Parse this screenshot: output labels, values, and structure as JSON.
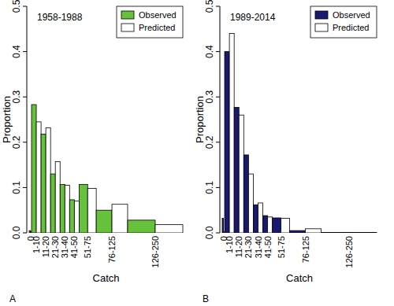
{
  "chart_data": [
    {
      "type": "bar",
      "title": "1958-1988",
      "panel_label": "A",
      "x_label": "Catch",
      "y_label": "Proportion",
      "categories": [
        "0",
        "1-10",
        "11-20",
        "21-30",
        "31-40",
        "41-50",
        "51-75",
        "76-125",
        "126-250"
      ],
      "series": [
        {
          "name": "Observed",
          "color": "#66c23a",
          "values": [
            0.005,
            0.283,
            0.218,
            0.13,
            0.107,
            0.073,
            0.107,
            0.05,
            0.028
          ]
        },
        {
          "name": "Predicted",
          "color": "#ffffff",
          "values": [
            0.003,
            0.245,
            0.232,
            0.157,
            0.105,
            0.07,
            0.098,
            0.063,
            0.018
          ]
        }
      ],
      "ylim": [
        0,
        0.5
      ],
      "yticks": [
        {
          "value": 0,
          "label": "0.0"
        },
        0.1,
        0.2,
        0.3,
        0.4,
        0.5
      ],
      "legend": "top-right"
    },
    {
      "type": "bar",
      "title": "1989-2014",
      "panel_label": "B",
      "x_label": "Catch",
      "y_label": "Proportion",
      "categories": [
        "0",
        "1-10",
        "11-20",
        "21-30",
        "31-40",
        "41-50",
        "51-75",
        "76-125",
        "126-250"
      ],
      "series": [
        {
          "name": "Observed",
          "color": "#191970",
          "values": [
            0.032,
            0.4,
            0.277,
            0.172,
            0.062,
            0.038,
            0.033,
            0.005,
            0.001
          ]
        },
        {
          "name": "Predicted",
          "color": "#ffffff",
          "values": [
            0.002,
            0.44,
            0.26,
            0.13,
            0.066,
            0.035,
            0.032,
            0.009,
            0.001
          ]
        }
      ],
      "ylim": [
        0,
        0.5
      ],
      "yticks": [
        {
          "value": 0,
          "label": "0.0"
        },
        0.1,
        0.2,
        0.3,
        0.4,
        0.5
      ],
      "legend": "top-right"
    }
  ]
}
